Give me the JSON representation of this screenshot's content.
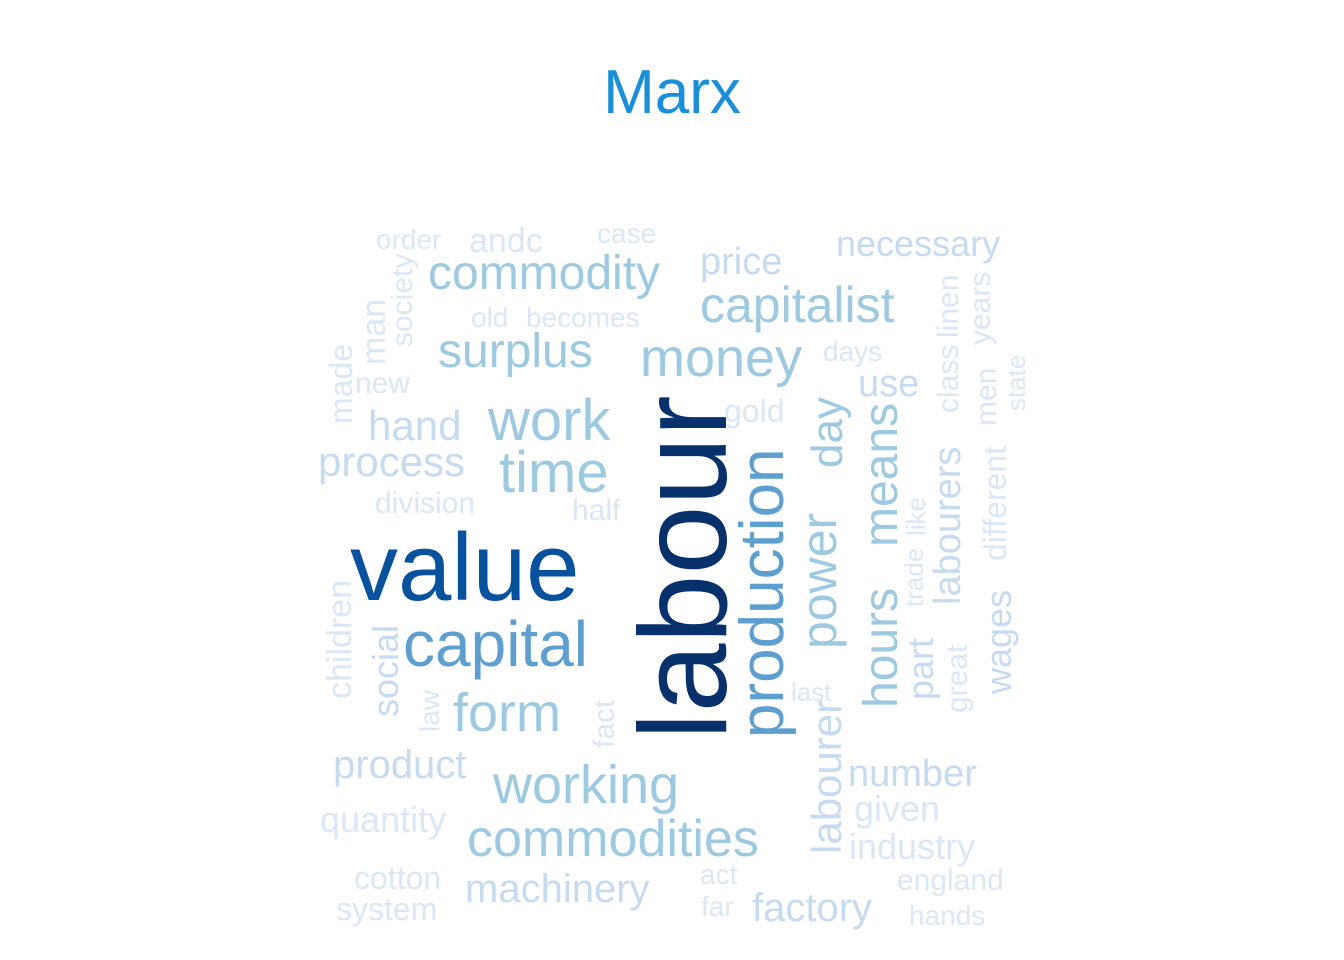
{
  "title": "Marx",
  "title_color": "#1a8fd8",
  "palette": {
    "darkest": "#08306b",
    "dark": "#08519c",
    "medium": "#5e9fd0",
    "light": "#9ecae1",
    "lighter": "#c6dbef",
    "lightest": "#dbe7f4"
  },
  "words": [
    {
      "text": "labour",
      "tone": "darkest",
      "vertical": true
    },
    {
      "text": "value",
      "tone": "dark",
      "vertical": false
    },
    {
      "text": "capital",
      "tone": "medium",
      "vertical": false
    },
    {
      "text": "production",
      "tone": "medium",
      "vertical": true
    },
    {
      "text": "time",
      "tone": "light",
      "vertical": false
    },
    {
      "text": "work",
      "tone": "light",
      "vertical": false
    },
    {
      "text": "money",
      "tone": "light",
      "vertical": false
    },
    {
      "text": "commodities",
      "tone": "light",
      "vertical": false
    },
    {
      "text": "commodity",
      "tone": "light",
      "vertical": false
    },
    {
      "text": "capitalist",
      "tone": "light",
      "vertical": false
    },
    {
      "text": "surplus",
      "tone": "light",
      "vertical": false
    },
    {
      "text": "form",
      "tone": "light",
      "vertical": false
    },
    {
      "text": "working",
      "tone": "light",
      "vertical": false
    },
    {
      "text": "power",
      "tone": "light",
      "vertical": true
    },
    {
      "text": "hours",
      "tone": "light",
      "vertical": true
    },
    {
      "text": "means",
      "tone": "light",
      "vertical": true
    },
    {
      "text": "day",
      "tone": "light",
      "vertical": true
    },
    {
      "text": "labourer",
      "tone": "lighter",
      "vertical": true
    },
    {
      "text": "price",
      "tone": "lighter",
      "vertical": false
    },
    {
      "text": "use",
      "tone": "lighter",
      "vertical": false
    },
    {
      "text": "hand",
      "tone": "lighter",
      "vertical": false
    },
    {
      "text": "process",
      "tone": "lighter",
      "vertical": false
    },
    {
      "text": "product",
      "tone": "lighter",
      "vertical": false
    },
    {
      "text": "machinery",
      "tone": "lighter",
      "vertical": false
    },
    {
      "text": "factory",
      "tone": "lighter",
      "vertical": false
    },
    {
      "text": "number",
      "tone": "lighter",
      "vertical": false
    },
    {
      "text": "necessary",
      "tone": "lighter",
      "vertical": false
    },
    {
      "text": "labourers",
      "tone": "lighter",
      "vertical": true
    },
    {
      "text": "wages",
      "tone": "lighter",
      "vertical": true
    },
    {
      "text": "part",
      "tone": "lighter",
      "vertical": true
    },
    {
      "text": "social",
      "tone": "lighter",
      "vertical": true
    },
    {
      "text": "given",
      "tone": "lightest",
      "vertical": false
    },
    {
      "text": "industry",
      "tone": "lightest",
      "vertical": false
    },
    {
      "text": "quantity",
      "tone": "lightest",
      "vertical": false
    },
    {
      "text": "cotton",
      "tone": "lightest",
      "vertical": false
    },
    {
      "text": "system",
      "tone": "lightest",
      "vertical": false
    },
    {
      "text": "england",
      "tone": "lightest",
      "vertical": false
    },
    {
      "text": "hands",
      "tone": "lightest",
      "vertical": false
    },
    {
      "text": "act",
      "tone": "lightest",
      "vertical": false
    },
    {
      "text": "far",
      "tone": "lightest",
      "vertical": false
    },
    {
      "text": "andc",
      "tone": "lightest",
      "vertical": false
    },
    {
      "text": "order",
      "tone": "lightest",
      "vertical": false
    },
    {
      "text": "case",
      "tone": "lightest",
      "vertical": false
    },
    {
      "text": "old",
      "tone": "lightest",
      "vertical": false
    },
    {
      "text": "becomes",
      "tone": "lightest",
      "vertical": false
    },
    {
      "text": "new",
      "tone": "lightest",
      "vertical": false
    },
    {
      "text": "days",
      "tone": "lightest",
      "vertical": false
    },
    {
      "text": "gold",
      "tone": "lightest",
      "vertical": false
    },
    {
      "text": "division",
      "tone": "lightest",
      "vertical": false
    },
    {
      "text": "half",
      "tone": "lightest",
      "vertical": false
    },
    {
      "text": "last",
      "tone": "lightest",
      "vertical": false
    },
    {
      "text": "society",
      "tone": "lightest",
      "vertical": true
    },
    {
      "text": "man",
      "tone": "lightest",
      "vertical": true
    },
    {
      "text": "made",
      "tone": "lightest",
      "vertical": true
    },
    {
      "text": "children",
      "tone": "lightest",
      "vertical": true
    },
    {
      "text": "law",
      "tone": "lightest",
      "vertical": true
    },
    {
      "text": "fact",
      "tone": "lightest",
      "vertical": true
    },
    {
      "text": "great",
      "tone": "lightest",
      "vertical": true
    },
    {
      "text": "trade",
      "tone": "lightest",
      "vertical": true
    },
    {
      "text": "like",
      "tone": "lightest",
      "vertical": true
    },
    {
      "text": "class",
      "tone": "lightest",
      "vertical": true
    },
    {
      "text": "linen",
      "tone": "lightest",
      "vertical": true
    },
    {
      "text": "years",
      "tone": "lightest",
      "vertical": true
    },
    {
      "text": "men",
      "tone": "lightest",
      "vertical": true
    },
    {
      "text": "different",
      "tone": "lightest",
      "vertical": true
    },
    {
      "text": "state",
      "tone": "lightest",
      "vertical": true
    }
  ]
}
